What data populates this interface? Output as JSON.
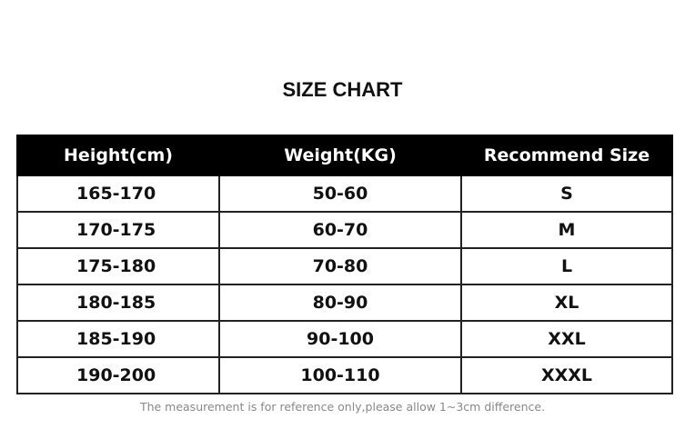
{
  "title": "SIZE CHART",
  "headers": [
    "Height(cm)",
    "Weight(KG)",
    "Recommend Size"
  ],
  "rows": [
    [
      "165-170",
      "50-60",
      "S"
    ],
    [
      "170-175",
      "60-70",
      "M"
    ],
    [
      "175-180",
      "70-80",
      "L"
    ],
    [
      "180-185",
      "80-90",
      "XL"
    ],
    [
      "185-190",
      "90-100",
      "XXL"
    ],
    [
      "190-200",
      "100-110",
      "XXXL"
    ]
  ],
  "note": "The measurement is for reference only,please allow 1~3cm difference."
}
